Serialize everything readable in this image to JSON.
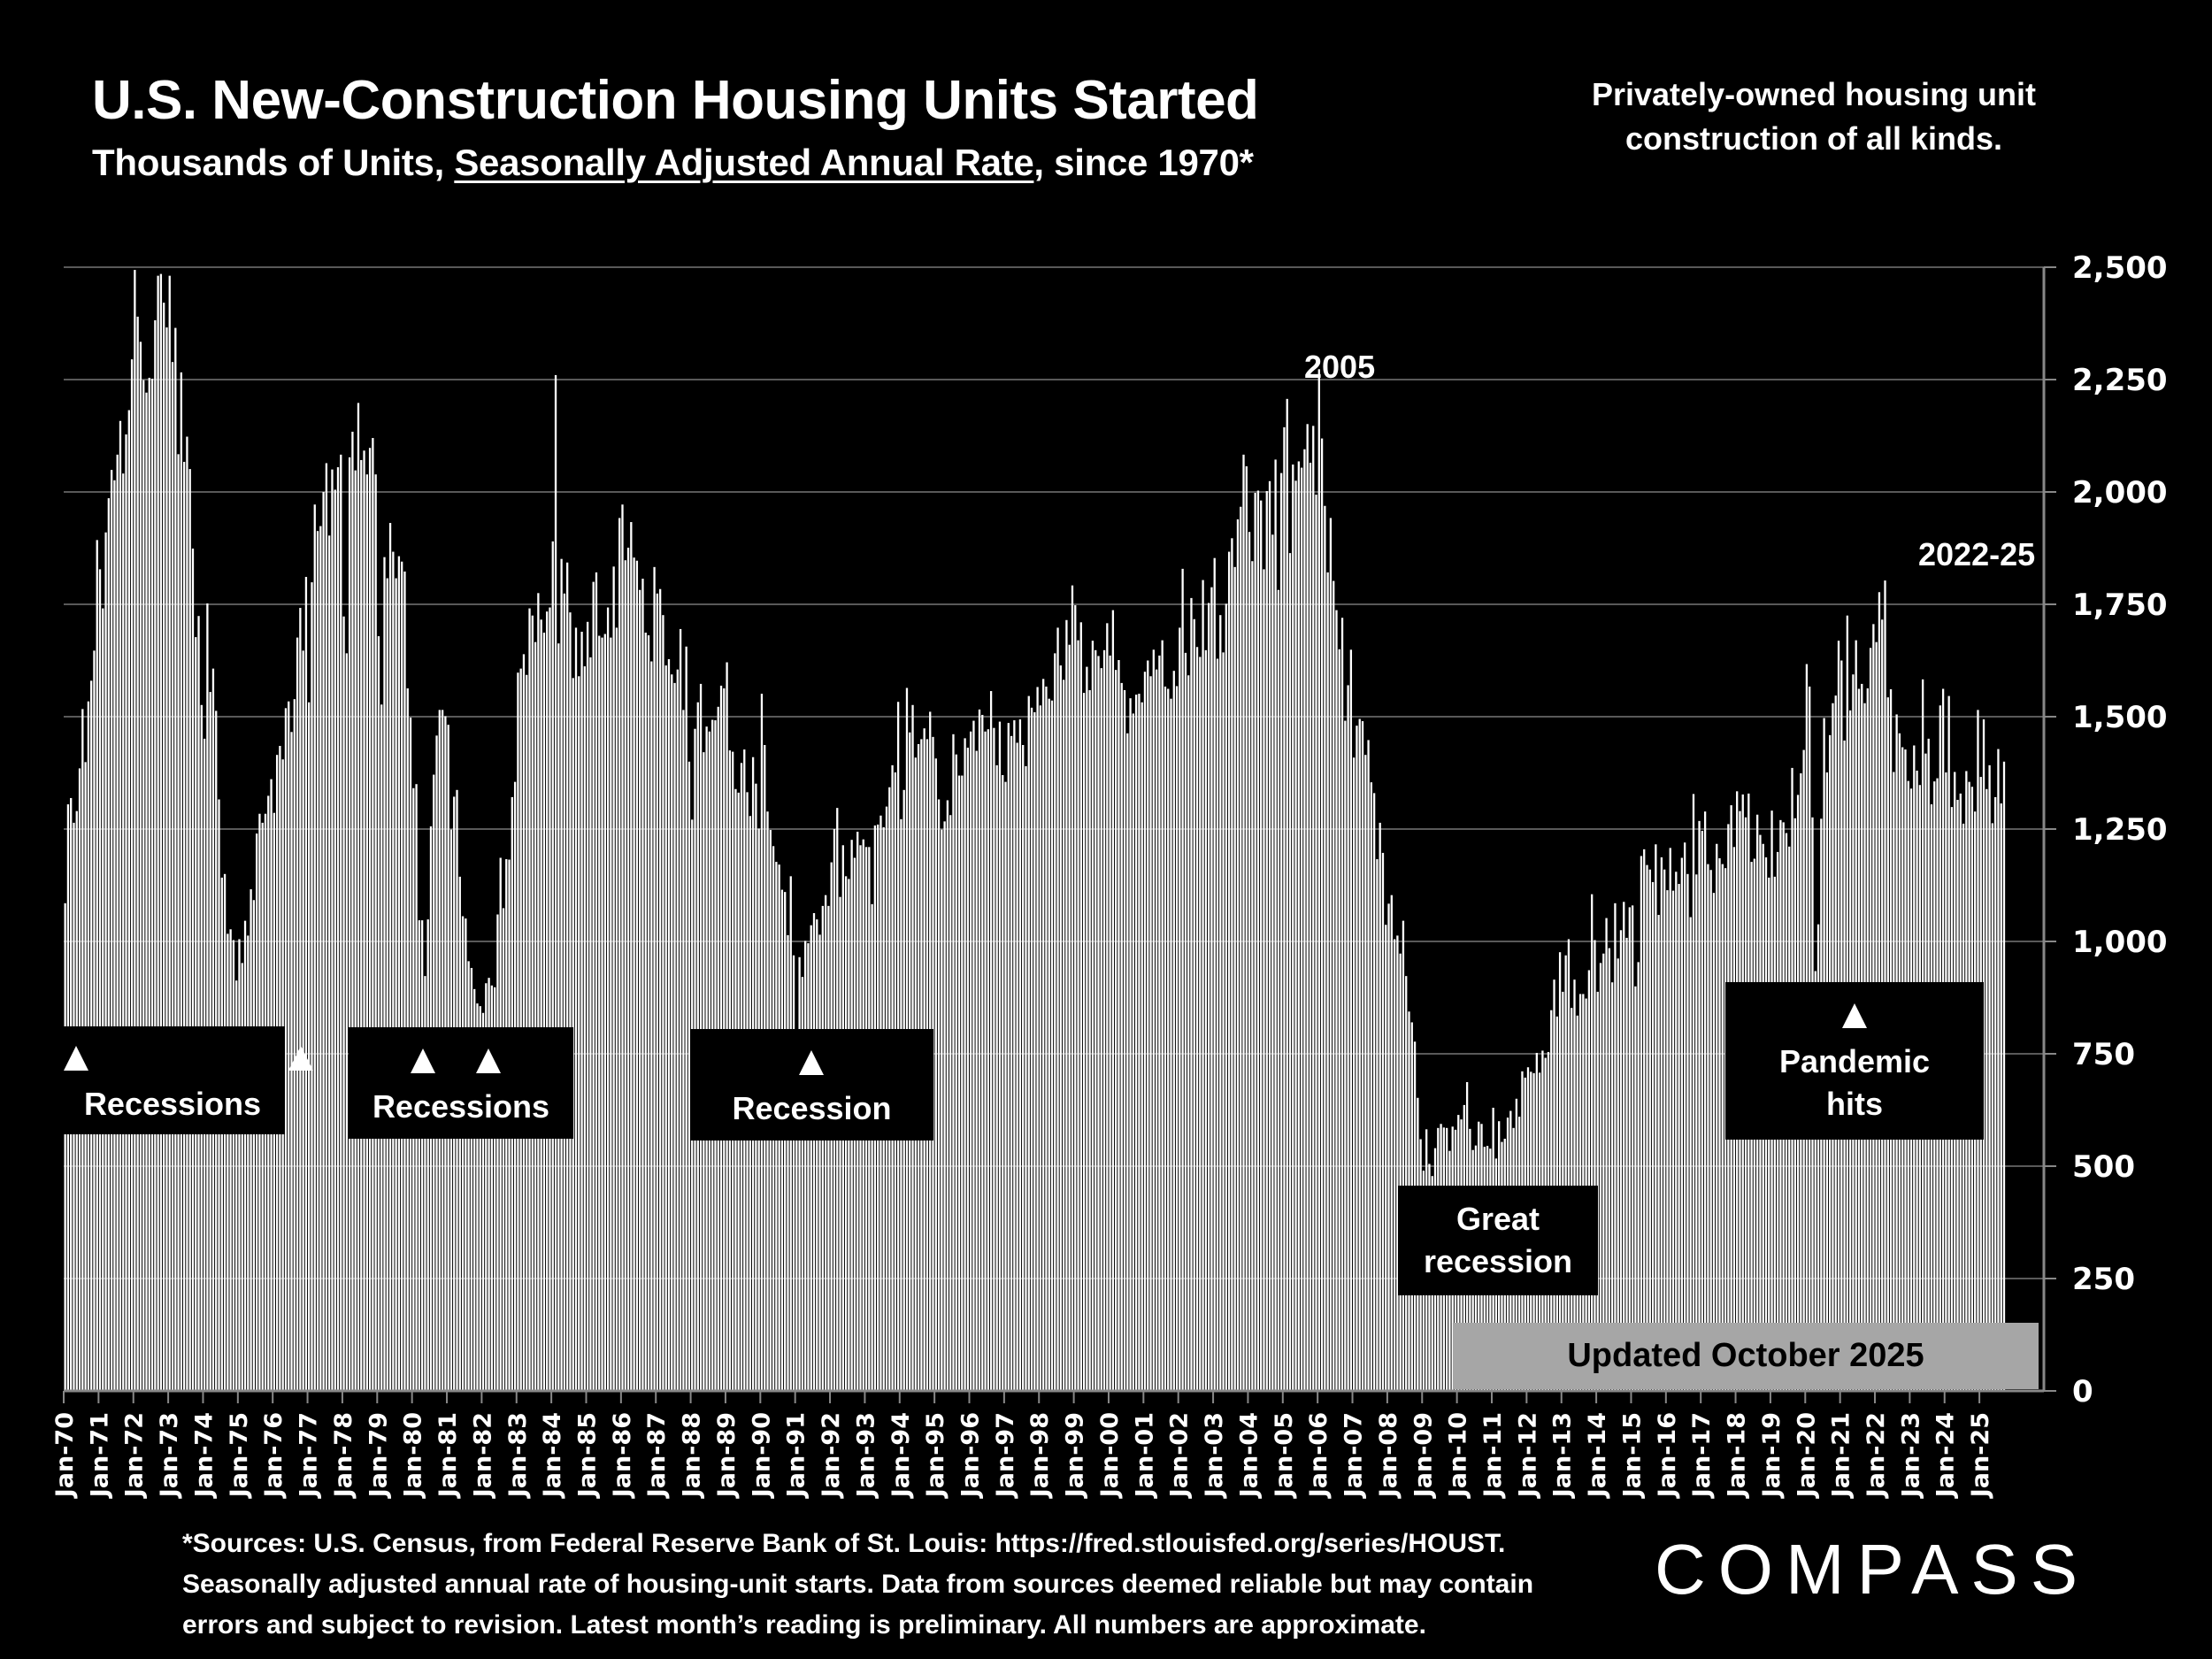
{
  "header": {
    "title": "U.S. New-Construction Housing Units Started",
    "subtitle_prefix": "Thousands of Units, ",
    "subtitle_underlined": "Seasonally Adjusted Annual Rate",
    "subtitle_suffix": ", since 1970*",
    "note": "Privately-owned housing unit construction of all kinds."
  },
  "annotations": {
    "recessions_1": "Recessions",
    "recessions_2": "Recessions",
    "recession_3": "Recession",
    "great_recession_line1": "Great",
    "great_recession_line2": "recession",
    "pandemic_line1": "Pandemic",
    "pandemic_line2": "hits",
    "peak_2005": "2005",
    "peak_2022_25": "2022-25",
    "updated": "Updated October 2025"
  },
  "footer": {
    "footnote_lines": [
      "*Sources: U.S. Census, from Federal Reserve Bank of St. Louis:  https://fred.stlouisfed.org/series/HOUST.",
      "Seasonally adjusted annual rate of housing-unit starts. Data from sources deemed reliable but may contain",
      "errors and subject to revision. Latest month’s reading is preliminary. All numbers are approximate."
    ],
    "logo": "COMPASS"
  },
  "colors": {
    "background": "#000000",
    "bars": "#ffffff",
    "gridline": "#595959",
    "updated_box": "#a6a6a6"
  },
  "chart_data": {
    "type": "bar",
    "title": "U.S. New-Construction Housing Units Started",
    "ylabel": "Thousands of Units, Seasonally Adjusted Annual Rate",
    "xlabel": "",
    "ylim": [
      0,
      2500
    ],
    "yticks": [
      0,
      250,
      500,
      750,
      1000,
      1250,
      1500,
      1750,
      2000,
      2250,
      2500
    ],
    "ytick_labels": [
      "0",
      "250",
      "500",
      "750",
      "1,000",
      "1,250",
      "1,500",
      "1,750",
      "2,000",
      "2,250",
      "2,500"
    ],
    "y_axis_side": "right",
    "grid": true,
    "frequency": "monthly",
    "start": "Jan-70",
    "xtick_labels": [
      "Jan-70",
      "Jan-71",
      "Jan-72",
      "Jan-73",
      "Jan-74",
      "Jan-75",
      "Jan-76",
      "Jan-77",
      "Jan-78",
      "Jan-79",
      "Jan-80",
      "Jan-81",
      "Jan-82",
      "Jan-83",
      "Jan-84",
      "Jan-85",
      "Jan-86",
      "Jan-87",
      "Jan-88",
      "Jan-89",
      "Jan-90",
      "Jan-91",
      "Jan-92",
      "Jan-93",
      "Jan-94",
      "Jan-95",
      "Jan-96",
      "Jan-97",
      "Jan-98",
      "Jan-99",
      "Jan-00",
      "Jan-01",
      "Jan-02",
      "Jan-03",
      "Jan-04",
      "Jan-05",
      "Jan-06",
      "Jan-07",
      "Jan-08",
      "Jan-09",
      "Jan-10",
      "Jan-11",
      "Jan-12",
      "Jan-13",
      "Jan-14",
      "Jan-15",
      "Jan-16",
      "Jan-17",
      "Jan-18",
      "Jan-19",
      "Jan-20",
      "Jan-21",
      "Jan-22",
      "Jan-23",
      "Jan-24",
      "Jan-25"
    ],
    "series": [
      {
        "name": "Housing starts (SAAR, thousands)",
        "values_by_year": {
          "1970": [
            1085,
            1305,
            1319,
            1264,
            1290,
            1385,
            1517,
            1399,
            1534,
            1580,
            1647,
            1893
          ],
          "1971": [
            1828,
            1741,
            1910,
            1986,
            2049,
            2026,
            2083,
            2158,
            2041,
            2128,
            2182,
            2295
          ],
          "1972": [
            2494,
            2390,
            2334,
            2249,
            2221,
            2254,
            2252,
            2382,
            2481,
            2485,
            2421,
            2366
          ],
          "1973": [
            2481,
            2289,
            2365,
            2084,
            2266,
            2067,
            2123,
            2051,
            1874,
            1677,
            1724,
            1526
          ],
          "1974": [
            1451,
            1752,
            1555,
            1607,
            1513,
            1316,
            1142,
            1150,
            1017,
            1027,
            1003,
            913
          ],
          "1975": [
            1005,
            952,
            1046,
            1013,
            1116,
            1092,
            1240,
            1284,
            1264,
            1284,
            1324,
            1361
          ],
          "1976": [
            1286,
            1415,
            1435,
            1405,
            1519,
            1534,
            1466,
            1539,
            1676,
            1742,
            1647,
            1811
          ],
          "1977": [
            1532,
            1799,
            1972,
            1913,
            1924,
            2000,
            2064,
            1903,
            2050,
            2005,
            2055,
            2083
          ],
          "1978": [
            1723,
            1641,
            2077,
            2134,
            2048,
            2198,
            2071,
            2092,
            2039,
            2098,
            2120,
            2039
          ],
          "1979": [
            1679,
            1527,
            1855,
            1808,
            1931,
            1867,
            1808,
            1857,
            1845,
            1823,
            1563,
            1498
          ],
          "1980": [
            1341,
            1350,
            1047,
            1047,
            923,
            1049,
            1256,
            1371,
            1458,
            1515,
            1515,
            1501
          ],
          "1981": [
            1482,
            1249,
            1322,
            1337,
            1144,
            1056,
            1051,
            956,
            941,
            894,
            862,
            856
          ],
          "1982": [
            841,
            907,
            919,
            902,
            898,
            1060,
            1186,
            1074,
            1183,
            1182,
            1321,
            1355
          ],
          "1983": [
            1598,
            1607,
            1639,
            1593,
            1741,
            1725,
            1666,
            1775,
            1716,
            1687,
            1734,
            1743
          ],
          "1984": [
            1890,
            2260,
            1663,
            1851,
            1774,
            1843,
            1732,
            1586,
            1698,
            1590,
            1689,
            1612
          ],
          "1985": [
            1711,
            1632,
            1800,
            1821,
            1680,
            1676,
            1684,
            1743,
            1676,
            1834,
            1698,
            1942
          ],
          "1986": [
            1972,
            1848,
            1876,
            1933,
            1854,
            1847,
            1782,
            1807,
            1687,
            1681,
            1623,
            1833
          ],
          "1987": [
            1774,
            1784,
            1726,
            1614,
            1628,
            1594,
            1575,
            1605,
            1695,
            1515,
            1656,
            1400
          ],
          "1988": [
            1271,
            1473,
            1532,
            1573,
            1421,
            1478,
            1467,
            1493,
            1492,
            1522,
            1569,
            1563
          ],
          "1989": [
            1621,
            1425,
            1422,
            1339,
            1331,
            1397,
            1427,
            1332,
            1279,
            1410,
            1351,
            1251
          ],
          "1990": [
            1551,
            1437,
            1289,
            1248,
            1212,
            1177,
            1171,
            1115,
            1110,
            1014,
            1145,
            969
          ],
          "1991": [
            798,
            965,
            921,
            1001,
            996,
            1036,
            1063,
            1049,
            1015,
            1079,
            1103,
            1079
          ],
          "1992": [
            1176,
            1250,
            1297,
            1099,
            1214,
            1145,
            1139,
            1226,
            1186,
            1244,
            1214,
            1227
          ],
          "1993": [
            1210,
            1210,
            1083,
            1258,
            1260,
            1280,
            1254,
            1300,
            1343,
            1392,
            1376,
            1533
          ],
          "1994": [
            1272,
            1337,
            1564,
            1465,
            1526,
            1409,
            1439,
            1450,
            1474,
            1450,
            1511,
            1455
          ],
          "1995": [
            1407,
            1316,
            1249,
            1267,
            1314,
            1281,
            1461,
            1416,
            1369,
            1369,
            1452,
            1431
          ],
          "1996": [
            1467,
            1491,
            1424,
            1516,
            1504,
            1467,
            1472,
            1557,
            1475,
            1392,
            1489,
            1370
          ],
          "1997": [
            1355,
            1486,
            1457,
            1492,
            1442,
            1494,
            1437,
            1390,
            1546,
            1520,
            1510,
            1566
          ],
          "1998": [
            1525,
            1584,
            1567,
            1540,
            1536,
            1641,
            1698,
            1614,
            1582,
            1715,
            1660,
            1792
          ],
          "1999": [
            1748,
            1670,
            1710,
            1553,
            1611,
            1559,
            1669,
            1648,
            1635,
            1608,
            1648,
            1708
          ],
          "2000": [
            1636,
            1737,
            1604,
            1626,
            1575,
            1559,
            1463,
            1541,
            1507,
            1549,
            1551,
            1532
          ],
          "2001": [
            1600,
            1625,
            1590,
            1649,
            1605,
            1636,
            1670,
            1567,
            1562,
            1540,
            1602,
            1568
          ],
          "2002": [
            1698,
            1829,
            1642,
            1592,
            1764,
            1717,
            1655,
            1633,
            1804,
            1648,
            1753,
            1788
          ],
          "2003": [
            1853,
            1629,
            1726,
            1643,
            1751,
            1867,
            1897,
            1833,
            1939,
            1967,
            2083,
            2057
          ],
          "2004": [
            1911,
            1846,
            1998,
            2003,
            1981,
            1828,
            2002,
            2024,
            1905,
            2072,
            1782,
            2042
          ],
          "2005": [
            2144,
            2207,
            1864,
            2061,
            2025,
            2068,
            2054,
            2095,
            2151,
            2065,
            2147,
            1994
          ],
          "2006": [
            2273,
            2119,
            1969,
            1821,
            1942,
            1802,
            1737,
            1650,
            1720,
            1491,
            1570,
            1649
          ],
          "2007": [
            1409,
            1480,
            1495,
            1490,
            1415,
            1448,
            1354,
            1330,
            1183,
            1264,
            1197,
            1037
          ],
          "2008": [
            1084,
            1103,
            1005,
            1013,
            973,
            1046,
            923,
            844,
            820,
            777,
            652,
            560
          ],
          "2009": [
            490,
            582,
            505,
            478,
            540,
            585,
            594,
            586,
            585,
            534,
            588,
            581
          ],
          "2010": [
            614,
            604,
            636,
            687,
            583,
            536,
            546,
            599,
            594,
            543,
            545,
            539
          ],
          "2011": [
            630,
            517,
            600,
            554,
            561,
            608,
            623,
            585,
            650,
            610,
            711,
            697
          ],
          "2012": [
            720,
            710,
            707,
            752,
            708,
            757,
            741,
            754,
            847,
            915,
            833,
            976
          ],
          "2013": [
            888,
            969,
            1005,
            852,
            915,
            835,
            883,
            883,
            873,
            936,
            1105,
            1003
          ],
          "2014": [
            888,
            952,
            973,
            1052,
            985,
            909,
            1085,
            962,
            1025,
            1088,
            1008,
            1076
          ],
          "2015": [
            1080,
            900,
            954,
            1190,
            1205,
            1170,
            1160,
            1132,
            1216,
            1059,
            1187,
            1160
          ],
          "2016": [
            1114,
            1208,
            1113,
            1155,
            1128,
            1186,
            1220,
            1150,
            1054,
            1328,
            1149,
            1268
          ],
          "2017": [
            1246,
            1289,
            1172,
            1159,
            1108,
            1217,
            1185,
            1172,
            1163,
            1261,
            1303,
            1210
          ],
          "2018": [
            1334,
            1290,
            1327,
            1276,
            1329,
            1177,
            1184,
            1282,
            1237,
            1217,
            1187,
            1142
          ],
          "2019": [
            1291,
            1144,
            1199,
            1270,
            1265,
            1241,
            1211,
            1386,
            1274,
            1326,
            1374,
            1426
          ],
          "2020": [
            1617,
            1567,
            1276,
            934,
            1038,
            1273,
            1497,
            1376,
            1459,
            1530,
            1547,
            1669
          ],
          "2021": [
            1625,
            1447,
            1725,
            1514,
            1594,
            1670,
            1562,
            1573,
            1530,
            1563,
            1653,
            1706
          ],
          "2022": [
            1666,
            1777,
            1716,
            1803,
            1543,
            1561,
            1377,
            1505,
            1463,
            1432,
            1427,
            1357
          ],
          "2023": [
            1340,
            1436,
            1380,
            1348,
            1583,
            1418,
            1451,
            1305,
            1356,
            1363,
            1525,
            1562
          ],
          "2024": [
            1376,
            1546,
            1299,
            1377,
            1315,
            1329,
            1262,
            1379,
            1355,
            1344,
            1289,
            1515
          ],
          "2025": [
            1366,
            1494,
            1339,
            1392,
            1263,
            1321,
            1428,
            1307,
            1400
          ]
        }
      }
    ],
    "annotations": [
      {
        "text": "Recessions",
        "markers_at": [
          "Jan-70",
          "Nov-74"
        ]
      },
      {
        "text": "Recessions",
        "markers_at": [
          "Jul-80",
          "Oct-81"
        ]
      },
      {
        "text": "Recession",
        "markers_at": [
          "Jan-91"
        ]
      },
      {
        "text": "Great recession",
        "markers_at": []
      },
      {
        "text": "Pandemic hits",
        "markers_at": [
          "Apr-20"
        ]
      },
      {
        "text": "2005",
        "near": "2005 peak"
      },
      {
        "text": "2022-25",
        "near": "2022 peak"
      },
      {
        "text": "Updated October 2025"
      }
    ]
  }
}
